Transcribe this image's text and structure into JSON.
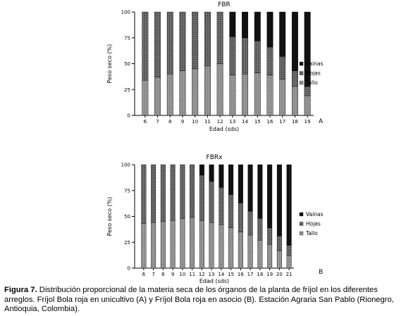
{
  "chart_data": [
    {
      "type": "bar",
      "stacked": true,
      "normalized": true,
      "title": "FBR",
      "panel_label": "A",
      "xlabel": "Edad (sds)",
      "ylabel": "Peso seco (%)",
      "ylim": [
        0,
        100
      ],
      "yticks": [
        0,
        25,
        50,
        75,
        100
      ],
      "categories": [
        "6",
        "7",
        "8",
        "9",
        "10",
        "11",
        "12",
        "13",
        "14",
        "15",
        "16",
        "17",
        "18",
        "19"
      ],
      "series": [
        {
          "name": "Tallo",
          "color": "#8c8c8c",
          "values": [
            34,
            37,
            40,
            43,
            45,
            48,
            50,
            39,
            40,
            41,
            39,
            35,
            28,
            19
          ]
        },
        {
          "name": "Hojas",
          "color": "#5a5a5a",
          "values": [
            66,
            63,
            60,
            57,
            55,
            52,
            50,
            37,
            35,
            31,
            27,
            22,
            15,
            9
          ]
        },
        {
          "name": "Vainas",
          "color": "#0d0d0d",
          "values": [
            0,
            0,
            0,
            0,
            0,
            0,
            0,
            24,
            25,
            28,
            34,
            43,
            57,
            72
          ]
        }
      ],
      "legend_order": [
        "Vainas",
        "Hojas",
        "Tallo"
      ],
      "legend_position": "right"
    },
    {
      "type": "bar",
      "stacked": true,
      "normalized": true,
      "title": "FBRx",
      "panel_label": "B",
      "xlabel": "Edad (sds)",
      "ylabel": "Peso seco (%)",
      "ylim": [
        0,
        100
      ],
      "yticks": [
        0,
        25,
        50,
        75,
        100
      ],
      "categories": [
        "6",
        "7",
        "8",
        "9",
        "10",
        "11",
        "12",
        "13",
        "14",
        "15",
        "16",
        "17",
        "18",
        "19",
        "20",
        "21"
      ],
      "series": [
        {
          "name": "Tallo",
          "color": "#8c8c8c",
          "values": [
            43,
            44,
            45,
            46,
            48,
            49,
            46,
            44,
            42,
            39,
            35,
            32,
            27,
            23,
            17,
            12
          ]
        },
        {
          "name": "Hojas",
          "color": "#5a5a5a",
          "values": [
            57,
            56,
            55,
            54,
            52,
            51,
            44,
            40,
            36,
            32,
            28,
            23,
            21,
            16,
            14,
            10
          ]
        },
        {
          "name": "Vainas",
          "color": "#0d0d0d",
          "values": [
            0,
            0,
            0,
            0,
            0,
            0,
            10,
            16,
            22,
            29,
            37,
            45,
            52,
            61,
            69,
            78
          ]
        }
      ],
      "legend_order": [
        "Vainas",
        "Hojas",
        "Tallo"
      ],
      "legend_position": "right"
    }
  ],
  "caption": {
    "lead": "Figura 7.",
    "text": "Distribución proporcional de la materia seca de los órganos de la planta de fríjol en los diferentes arreglos. Fríjol Bola roja en unicultivo (A) y  Fríjol Bola roja en asocio (B).  Estación Agraria San Pablo (Rionegro, Antioquia, Colombia)."
  }
}
